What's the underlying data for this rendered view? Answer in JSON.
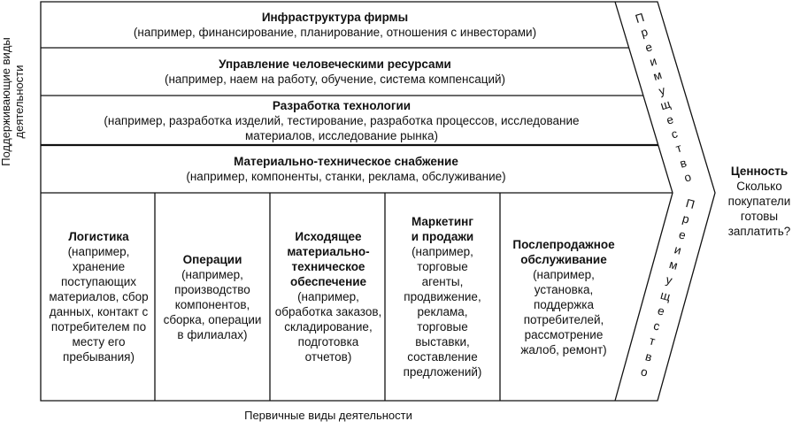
{
  "side_label": "Поддерживающие виды деятельности",
  "bottom_label": "Первичные виды деятельности",
  "support": [
    {
      "title": "Инфраструктура фирмы",
      "desc": "(например, финансирование, планирование, отношения с инвесторами)"
    },
    {
      "title": "Управление человеческими ресурсами",
      "desc": "(например, наем на работу, обучение, система компенсаций)"
    },
    {
      "title": "Разработка технологии",
      "desc": "(например, разработка изделий, тестирование, разработка процессов, исследование материалов, исследование рынка)"
    },
    {
      "title": "Материально-техническое снабжение",
      "desc": "(например, компоненты, станки, реклама, обслуживание)"
    }
  ],
  "primary": [
    {
      "title": "Логистика",
      "desc": "(например, хранение поступающих материалов, сбор данных, контакт с потребителем по месту его пребывания)"
    },
    {
      "title": "Операции",
      "desc": "(например, производство компонентов, сборка, операции в филиалах)"
    },
    {
      "title": "Исходящее материально-техническое обеспечение",
      "desc": "(например, обработка заказов, складирование, подготовка отчетов)"
    },
    {
      "title": "Маркетинг и продажи",
      "desc": "(например, торговые агенты, продвижение, реклама, торговые выставки, составление предложений)"
    },
    {
      "title": "Послепродажное обслуживание",
      "desc": "(например, установка, поддержка потребителей, рассмотрение жалоб, ремонт)"
    }
  ],
  "margin_labels": [
    "Преимущество",
    "Преимущество"
  ],
  "value": {
    "title": "Ценность",
    "desc": "Сколько покупатели готовы заплатить?"
  }
}
